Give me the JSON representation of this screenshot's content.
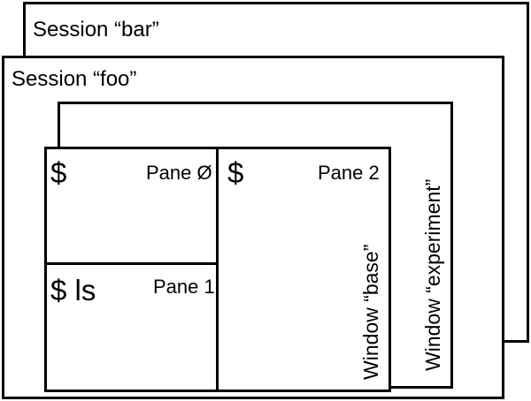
{
  "sessions": {
    "bar": {
      "label": "Session “bar”"
    },
    "foo": {
      "label": "Session “foo”"
    }
  },
  "windows": {
    "experiment": {
      "label": "Window “experiment”"
    },
    "base": {
      "label": "Window “base”"
    }
  },
  "panes": {
    "pane0": {
      "label": "Pane Ø",
      "prompt": "$"
    },
    "pane1": {
      "label": "Pane 1",
      "prompt": "$ ls"
    },
    "pane2": {
      "label": "Pane 2",
      "prompt": "$"
    }
  },
  "colors": {
    "stroke": "#000000",
    "fill": "#ffffff"
  }
}
